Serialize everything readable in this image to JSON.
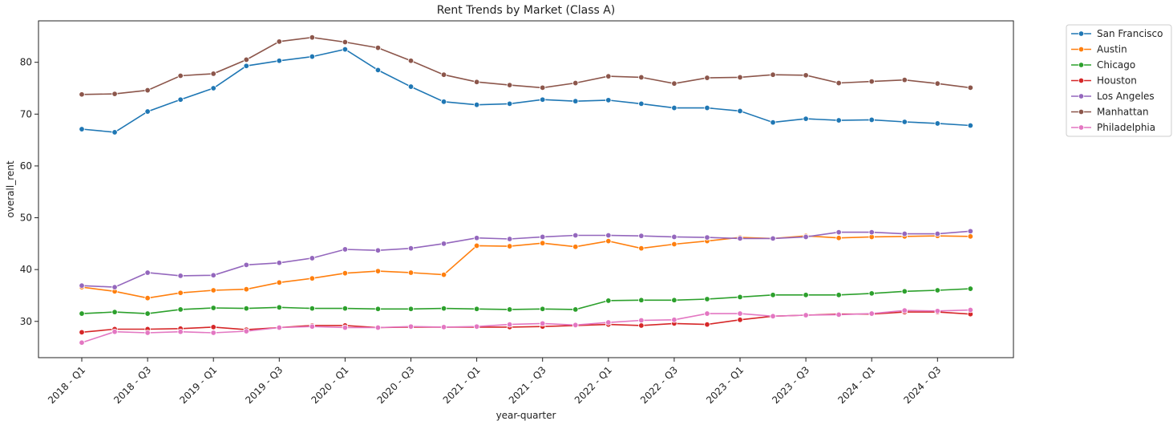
{
  "chart_data": {
    "type": "line",
    "title": "Rent Trends by Market (Class A)",
    "xlabel": "year-quarter",
    "ylabel": "overall_rent",
    "ylim": [
      23,
      88
    ],
    "yticks": [
      30,
      40,
      50,
      60,
      70,
      80
    ],
    "grid": false,
    "legend_position": "outside-top-right",
    "categories": [
      "2018 - Q1",
      "2018 - Q2",
      "2018 - Q3",
      "2018 - Q4",
      "2019 - Q1",
      "2019 - Q2",
      "2019 - Q3",
      "2019 - Q4",
      "2020 - Q1",
      "2020 - Q2",
      "2020 - Q3",
      "2020 - Q4",
      "2021 - Q1",
      "2021 - Q2",
      "2021 - Q3",
      "2021 - Q4",
      "2022 - Q1",
      "2022 - Q2",
      "2022 - Q3",
      "2022 - Q4",
      "2023 - Q1",
      "2023 - Q2",
      "2023 - Q3",
      "2023 - Q4",
      "2024 - Q1",
      "2024 - Q2",
      "2024 - Q3",
      "2024 - Q4"
    ],
    "tick_labels": [
      "2018 - Q1",
      "2018 - Q3",
      "2019 - Q1",
      "2019 - Q3",
      "2020 - Q1",
      "2020 - Q3",
      "2021 - Q1",
      "2021 - Q3",
      "2022 - Q1",
      "2022 - Q3",
      "2023 - Q1",
      "2023 - Q3",
      "2024 - Q1",
      "2024 - Q3"
    ],
    "series": [
      {
        "name": "San Francisco",
        "color": "#1f77b4",
        "values": [
          67.1,
          66.5,
          70.5,
          72.8,
          75.0,
          79.3,
          80.3,
          81.1,
          82.5,
          78.5,
          75.3,
          72.4,
          71.8,
          72.0,
          72.8,
          72.5,
          72.7,
          72.0,
          71.2,
          71.2,
          70.6,
          68.4,
          69.1,
          68.8,
          68.9,
          68.5,
          68.2,
          67.8
        ]
      },
      {
        "name": "Austin",
        "color": "#ff7f0e",
        "values": [
          36.6,
          35.8,
          34.5,
          35.5,
          36.0,
          36.2,
          37.5,
          38.3,
          39.3,
          39.7,
          39.4,
          39.0,
          44.6,
          44.5,
          45.1,
          44.4,
          45.5,
          44.1,
          44.9,
          45.5,
          46.2,
          46.0,
          46.5,
          46.1,
          46.3,
          46.4,
          46.5,
          46.4
        ]
      },
      {
        "name": "Chicago",
        "color": "#2ca02c",
        "values": [
          31.5,
          31.8,
          31.5,
          32.3,
          32.6,
          32.5,
          32.7,
          32.5,
          32.5,
          32.4,
          32.4,
          32.5,
          32.4,
          32.3,
          32.4,
          32.3,
          34.0,
          34.1,
          34.1,
          34.3,
          34.7,
          35.1,
          35.1,
          35.1,
          35.4,
          35.8,
          36.0,
          36.3
        ]
      },
      {
        "name": "Houston",
        "color": "#d62728",
        "values": [
          27.9,
          28.5,
          28.5,
          28.6,
          28.9,
          28.4,
          28.8,
          29.2,
          29.2,
          28.8,
          28.9,
          28.9,
          28.9,
          28.9,
          29.0,
          29.2,
          29.4,
          29.2,
          29.6,
          29.4,
          30.3,
          31.0,
          31.2,
          31.4,
          31.4,
          31.8,
          31.8,
          31.4
        ]
      },
      {
        "name": "Los Angeles",
        "color": "#9467bd",
        "values": [
          36.9,
          36.6,
          39.4,
          38.8,
          38.9,
          40.9,
          41.3,
          42.2,
          43.9,
          43.7,
          44.1,
          45.0,
          46.1,
          45.9,
          46.3,
          46.6,
          46.6,
          46.5,
          46.3,
          46.2,
          46.0,
          46.0,
          46.3,
          47.2,
          47.2,
          46.9,
          46.9,
          47.4
        ]
      },
      {
        "name": "Manhattan",
        "color": "#8c564b",
        "values": [
          73.8,
          73.9,
          74.6,
          77.4,
          77.8,
          80.5,
          84.0,
          84.8,
          83.9,
          82.8,
          80.3,
          77.6,
          76.2,
          75.6,
          75.1,
          76.0,
          77.3,
          77.1,
          75.9,
          77.0,
          77.1,
          77.6,
          77.5,
          76.0,
          76.3,
          76.6,
          75.9,
          75.1
        ]
      },
      {
        "name": "Philadelphia",
        "color": "#e377c2",
        "values": [
          25.9,
          28.0,
          27.8,
          28.0,
          27.8,
          28.1,
          28.8,
          29.0,
          28.8,
          28.8,
          29.0,
          28.9,
          29.0,
          29.4,
          29.6,
          29.3,
          29.8,
          30.2,
          30.3,
          31.5,
          31.5,
          31.0,
          31.2,
          31.3,
          31.5,
          32.1,
          32.0,
          32.2
        ]
      }
    ]
  }
}
